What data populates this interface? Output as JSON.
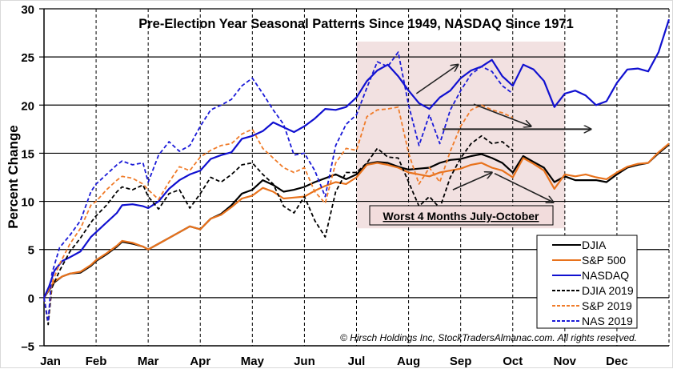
{
  "chart_data": {
    "type": "line",
    "title": "Pre-Election Year Seasonal Patterns Since 1949, NASDAQ Since 1971",
    "xlabel": "",
    "ylabel": "Percent Change",
    "ylim": [
      -5,
      30
    ],
    "yticks": [
      -5,
      0,
      5,
      10,
      15,
      20,
      25,
      30
    ],
    "ytick_labels": [
      "–5",
      "0",
      "5",
      "10",
      "15",
      "20",
      "25",
      "30"
    ],
    "x_unit": "months since Jan 1",
    "xlim": [
      0,
      12
    ],
    "categories": [
      "Jan",
      "Feb",
      "Mar",
      "Apr",
      "May",
      "Jun",
      "Jul",
      "Aug",
      "Sep",
      "Oct",
      "Nov",
      "Dec"
    ],
    "grid": {
      "horizontal": "solid",
      "vertical": "dashed"
    },
    "legend_position": "bottom-right",
    "shaded_region": {
      "from_month": 6,
      "to_month": 10,
      "label": "Worst 4 Months July-October",
      "color": "#f2e1e1"
    },
    "copyright": "© Hirsch Holdings Inc, StockTradersAlmanac.com. All rights reserved.",
    "series": [
      {
        "name": "DJIA",
        "color": "#000000",
        "style": "solid",
        "x": [
          0,
          0.1,
          0.2,
          0.35,
          0.5,
          0.7,
          0.9,
          1.0,
          1.2,
          1.4,
          1.5,
          1.7,
          1.9,
          2.0,
          2.2,
          2.4,
          2.6,
          2.8,
          3.0,
          3.2,
          3.4,
          3.6,
          3.8,
          4.0,
          4.2,
          4.4,
          4.6,
          4.8,
          5.0,
          5.2,
          5.4,
          5.6,
          5.8,
          6.0,
          6.2,
          6.4,
          6.6,
          6.8,
          7.0,
          7.2,
          7.4,
          7.6,
          7.8,
          8.0,
          8.2,
          8.4,
          8.6,
          8.8,
          9.0,
          9.2,
          9.4,
          9.6,
          9.8,
          10.0,
          10.2,
          10.4,
          10.6,
          10.8,
          11.0,
          11.2,
          11.4,
          11.6,
          11.8,
          12.0
        ],
        "values": [
          0,
          0.8,
          1.6,
          2.2,
          2.5,
          2.6,
          3.3,
          3.8,
          4.5,
          5.3,
          5.8,
          5.6,
          5.3,
          5.0,
          5.6,
          6.2,
          6.8,
          7.4,
          7.1,
          8.2,
          8.7,
          9.6,
          10.8,
          11.2,
          12.2,
          11.7,
          11.0,
          11.2,
          11.5,
          12.0,
          12.4,
          12.8,
          12.3,
          12.8,
          13.9,
          14.1,
          14.0,
          13.6,
          13.3,
          13.4,
          13.5,
          14.0,
          14.3,
          14.4,
          14.7,
          14.9,
          14.5,
          14.0,
          13.0,
          14.7,
          14.1,
          13.5,
          12.0,
          12.6,
          12.2,
          12.2,
          12.2,
          12.0,
          12.8,
          13.5,
          13.8,
          14.0,
          15.0,
          15.9
        ]
      },
      {
        "name": "S&P 500",
        "color": "#e8721c",
        "style": "solid",
        "x": [
          0,
          0.1,
          0.2,
          0.35,
          0.5,
          0.7,
          0.9,
          1.0,
          1.2,
          1.4,
          1.5,
          1.7,
          1.9,
          2.0,
          2.2,
          2.4,
          2.6,
          2.8,
          3.0,
          3.2,
          3.4,
          3.6,
          3.8,
          4.0,
          4.2,
          4.4,
          4.6,
          4.8,
          5.0,
          5.2,
          5.4,
          5.6,
          5.8,
          6.0,
          6.2,
          6.4,
          6.6,
          6.8,
          7.0,
          7.2,
          7.4,
          7.6,
          7.8,
          8.0,
          8.2,
          8.4,
          8.6,
          8.8,
          9.0,
          9.2,
          9.4,
          9.6,
          9.8,
          10.0,
          10.2,
          10.4,
          10.6,
          10.8,
          11.0,
          11.2,
          11.4,
          11.6,
          11.8,
          12.0
        ],
        "values": [
          0,
          0.9,
          1.7,
          2.2,
          2.5,
          2.7,
          3.4,
          3.9,
          4.6,
          5.4,
          5.9,
          5.7,
          5.3,
          5.0,
          5.6,
          6.2,
          6.8,
          7.4,
          7.1,
          8.2,
          8.6,
          9.4,
          10.3,
          10.6,
          11.4,
          11.0,
          10.3,
          10.4,
          10.5,
          11.1,
          11.6,
          12.0,
          11.8,
          12.5,
          13.8,
          14.0,
          13.8,
          13.5,
          13.0,
          12.8,
          12.6,
          13.0,
          13.2,
          13.4,
          13.8,
          14.0,
          13.5,
          13.2,
          12.5,
          14.5,
          13.9,
          13.2,
          11.3,
          12.8,
          12.6,
          12.8,
          12.5,
          12.3,
          13.0,
          13.6,
          13.9,
          14.0,
          15.1,
          16.0
        ]
      },
      {
        "name": "NASDAQ",
        "color": "#1010d0",
        "style": "solid",
        "x": [
          0,
          0.1,
          0.2,
          0.35,
          0.5,
          0.7,
          0.9,
          1.0,
          1.2,
          1.4,
          1.5,
          1.7,
          1.9,
          2.0,
          2.2,
          2.4,
          2.6,
          2.8,
          3.0,
          3.2,
          3.4,
          3.6,
          3.8,
          4.0,
          4.2,
          4.4,
          4.6,
          4.8,
          5.0,
          5.2,
          5.4,
          5.6,
          5.8,
          6.0,
          6.2,
          6.4,
          6.6,
          6.8,
          7.0,
          7.2,
          7.4,
          7.6,
          7.8,
          8.0,
          8.2,
          8.4,
          8.6,
          8.8,
          9.0,
          9.2,
          9.4,
          9.6,
          9.8,
          10.0,
          10.2,
          10.4,
          10.6,
          10.8,
          11.0,
          11.2,
          11.4,
          11.6,
          11.8,
          12.0
        ],
        "values": [
          0,
          1.2,
          2.8,
          3.8,
          4.2,
          4.8,
          6.3,
          6.8,
          7.8,
          8.8,
          9.6,
          9.7,
          9.5,
          9.3,
          10.0,
          11.3,
          12.2,
          12.8,
          13.2,
          14.4,
          14.8,
          15.1,
          16.5,
          16.8,
          17.3,
          18.2,
          17.7,
          17.2,
          17.8,
          18.6,
          19.6,
          19.5,
          19.8,
          20.8,
          22.5,
          23.6,
          24.2,
          23.0,
          21.5,
          20.2,
          19.6,
          20.8,
          21.5,
          22.8,
          23.6,
          24.0,
          24.7,
          23.0,
          22.0,
          24.2,
          23.7,
          22.5,
          19.8,
          21.2,
          21.5,
          21.0,
          20.0,
          20.4,
          22.3,
          23.7,
          23.8,
          23.5,
          25.5,
          28.9
        ]
      },
      {
        "name": "DJIA 2019",
        "color": "#000000",
        "style": "dashed",
        "x": [
          0,
          0.08,
          0.15,
          0.3,
          0.5,
          0.7,
          0.9,
          1.0,
          1.2,
          1.4,
          1.5,
          1.7,
          1.9,
          2.0,
          2.2,
          2.4,
          2.6,
          2.8,
          3.0,
          3.2,
          3.4,
          3.6,
          3.8,
          4.0,
          4.2,
          4.4,
          4.6,
          4.8,
          5.0,
          5.2,
          5.4,
          5.6,
          5.8,
          6.0,
          6.2,
          6.4,
          6.6,
          6.8,
          7.0,
          7.2,
          7.4,
          7.6,
          7.8,
          8.0,
          8.2,
          8.4,
          8.6,
          8.8,
          9.0
        ],
        "values": [
          0,
          -2.8,
          1.0,
          2.8,
          4.8,
          6.2,
          7.8,
          8.5,
          9.6,
          11.0,
          11.5,
          11.2,
          11.7,
          10.5,
          9.2,
          10.8,
          11.2,
          9.3,
          10.8,
          12.5,
          12.0,
          12.8,
          13.8,
          14.0,
          12.8,
          11.8,
          9.5,
          8.8,
          10.5,
          8.0,
          6.3,
          11.0,
          13.0,
          13.0,
          14.0,
          15.5,
          14.6,
          14.5,
          12.0,
          9.5,
          10.5,
          9.3,
          12.5,
          14.5,
          16.0,
          16.8,
          16.0,
          16.2,
          15.3
        ]
      },
      {
        "name": "S&P 2019",
        "color": "#f07c2a",
        "style": "dashed",
        "x": [
          0,
          0.08,
          0.15,
          0.3,
          0.5,
          0.7,
          0.9,
          1.0,
          1.2,
          1.4,
          1.5,
          1.7,
          1.9,
          2.0,
          2.2,
          2.4,
          2.6,
          2.8,
          3.0,
          3.2,
          3.4,
          3.6,
          3.8,
          4.0,
          4.2,
          4.4,
          4.6,
          4.8,
          5.0,
          5.2,
          5.4,
          5.6,
          5.8,
          6.0,
          6.2,
          6.4,
          6.6,
          6.8,
          7.0,
          7.2,
          7.4,
          7.6,
          7.8,
          8.0,
          8.2,
          8.4,
          8.6,
          8.8,
          9.0
        ],
        "values": [
          0,
          -2.5,
          1.5,
          3.5,
          5.6,
          7.2,
          9.6,
          10.0,
          11.2,
          12.2,
          12.6,
          12.4,
          11.8,
          11.2,
          10.2,
          12.0,
          13.6,
          13.2,
          14.6,
          15.3,
          15.8,
          16.0,
          17.0,
          17.5,
          15.5,
          14.5,
          13.5,
          13.0,
          13.5,
          11.0,
          9.8,
          14.0,
          15.5,
          15.3,
          18.8,
          19.5,
          19.6,
          19.8,
          15.0,
          11.8,
          13.5,
          12.0,
          15.2,
          17.8,
          19.5,
          20.0,
          19.5,
          19.2,
          18.7
        ]
      },
      {
        "name": "NAS 2019",
        "color": "#1a1ad8",
        "style": "dashed",
        "x": [
          0,
          0.08,
          0.15,
          0.3,
          0.5,
          0.7,
          0.9,
          1.0,
          1.2,
          1.4,
          1.5,
          1.7,
          1.9,
          2.0,
          2.2,
          2.4,
          2.6,
          2.8,
          3.0,
          3.2,
          3.4,
          3.6,
          3.8,
          4.0,
          4.2,
          4.4,
          4.6,
          4.8,
          5.0,
          5.2,
          5.4,
          5.6,
          5.8,
          6.0,
          6.2,
          6.4,
          6.6,
          6.8,
          7.0,
          7.2,
          7.4,
          7.6,
          7.8,
          8.0,
          8.2,
          8.4,
          8.6,
          8.8,
          9.0
        ],
        "values": [
          0,
          -2.5,
          2.5,
          5.2,
          6.5,
          8.0,
          11.0,
          11.8,
          12.8,
          13.8,
          14.2,
          13.8,
          14.0,
          12.0,
          14.8,
          16.2,
          15.2,
          15.8,
          17.8,
          19.5,
          20.0,
          20.6,
          22.0,
          22.8,
          21.2,
          19.5,
          18.0,
          14.8,
          15.0,
          13.2,
          10.5,
          15.8,
          18.0,
          19.0,
          21.8,
          24.5,
          24.0,
          25.5,
          20.0,
          15.8,
          19.0,
          16.0,
          19.5,
          21.5,
          23.2,
          24.0,
          23.5,
          22.0,
          21.2
        ]
      }
    ],
    "annotations": [
      {
        "type": "arrow",
        "label": "NASDAQ up-trend",
        "from": [
          7.15,
          21.2
        ],
        "to": [
          7.95,
          24.2
        ]
      },
      {
        "type": "arrow",
        "label": "NASDAQ down-trend",
        "from": [
          8.25,
          20.1
        ],
        "to": [
          9.35,
          17.8
        ]
      },
      {
        "type": "arrow",
        "label": "horizontal",
        "from": [
          7.65,
          17.5
        ],
        "to": [
          10.5,
          17.5
        ]
      },
      {
        "type": "arrow",
        "label": "DJIA up-trend",
        "from": [
          7.85,
          11.2
        ],
        "to": [
          8.6,
          13.0
        ]
      },
      {
        "type": "arrow",
        "label": "DJIA down-trend",
        "from": [
          8.65,
          12.9
        ],
        "to": [
          9.78,
          9.9
        ]
      }
    ]
  }
}
